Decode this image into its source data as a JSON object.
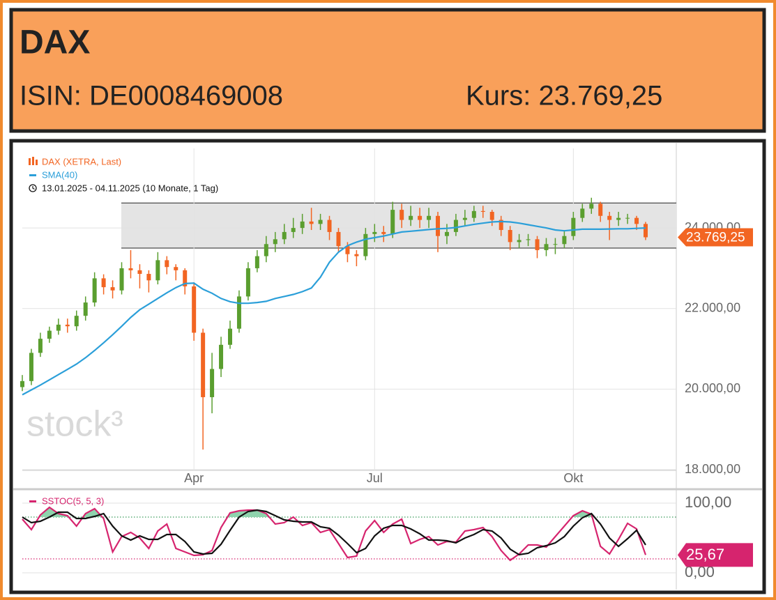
{
  "header": {
    "title": "DAX",
    "isin": "ISIN: DE0008469008",
    "price": "Kurs: 23.769,25"
  },
  "chart_data": [
    {
      "type": "candlestick",
      "period": "13.01.2025 - 04.11.2025  (10 Monate, 1 Tag)",
      "watermark": "stock³",
      "categories": [
        null,
        null,
        null,
        null,
        null,
        null,
        null,
        null,
        null,
        null,
        null,
        null,
        null,
        null,
        null,
        null,
        null,
        null,
        null,
        "Apr",
        null,
        null,
        null,
        null,
        null,
        null,
        null,
        null,
        null,
        null,
        null,
        null,
        null,
        null,
        null,
        null,
        null,
        null,
        null,
        "Jul",
        null,
        null,
        null,
        null,
        null,
        null,
        null,
        null,
        null,
        null,
        null,
        null,
        null,
        null,
        null,
        null,
        null,
        null,
        null,
        null,
        null,
        "Okt",
        null,
        null,
        null,
        null,
        null,
        null,
        null,
        null
      ],
      "series": [
        {
          "name": "DAX (XETRA, Last)",
          "color": "#f26522",
          "up_color": "#5a9e2f",
          "open": [
            20050,
            20200,
            20900,
            21250,
            21450,
            21600,
            21560,
            21820,
            22150,
            22750,
            22530,
            22450,
            23000,
            22950,
            22860,
            22700,
            23200,
            23030,
            22950,
            22550,
            21400,
            19800,
            20500,
            21100,
            21500,
            22300,
            23000,
            23300,
            23600,
            23720,
            23900,
            24000,
            24160,
            24100,
            24200,
            23900,
            23550,
            23350,
            23300,
            23850,
            23900,
            23850,
            24450,
            24200,
            24300,
            24200,
            24300,
            23800,
            23900,
            24200,
            24250,
            24420,
            24400,
            24200,
            23950,
            23650,
            23700,
            23720,
            23450,
            23600,
            23600,
            23800,
            24250,
            24480,
            24600,
            24300,
            24200,
            24250,
            24250,
            24100
          ],
          "high": [
            20350,
            21000,
            21400,
            21550,
            21750,
            21750,
            21950,
            22300,
            22900,
            22850,
            22700,
            23150,
            23450,
            23100,
            22950,
            23400,
            23300,
            23100,
            23000,
            22650,
            21500,
            20900,
            21300,
            21700,
            22450,
            23150,
            23450,
            23800,
            23900,
            24100,
            24250,
            24350,
            24500,
            24350,
            24300,
            24000,
            23650,
            23450,
            24000,
            24100,
            24050,
            24650,
            24600,
            24550,
            24500,
            24500,
            24400,
            24100,
            24350,
            24450,
            24550,
            24550,
            24450,
            24300,
            24050,
            23850,
            23850,
            23800,
            23750,
            23750,
            23950,
            24400,
            24600,
            24750,
            24650,
            24400,
            24400,
            24350,
            24300,
            24150
          ],
          "low": [
            19950,
            20100,
            20800,
            21150,
            21350,
            21400,
            21450,
            21700,
            22050,
            22350,
            22250,
            22350,
            22750,
            22500,
            22400,
            22600,
            22850,
            22700,
            22350,
            21200,
            18500,
            19400,
            20300,
            21000,
            21400,
            22200,
            22900,
            23150,
            23400,
            23600,
            23750,
            23850,
            23950,
            23950,
            23700,
            23400,
            23150,
            23050,
            23200,
            23650,
            23650,
            23750,
            24000,
            24050,
            24000,
            24000,
            23400,
            23600,
            23800,
            24050,
            24150,
            24250,
            24050,
            23800,
            23450,
            23500,
            23550,
            23250,
            23300,
            23350,
            23500,
            23700,
            24150,
            24350,
            24150,
            23700,
            24050,
            24100,
            23950,
            23700
          ],
          "close": [
            20200,
            20900,
            21250,
            21450,
            21600,
            21560,
            21820,
            22150,
            22750,
            22530,
            22450,
            23000,
            22950,
            22860,
            22700,
            23200,
            23030,
            22950,
            22550,
            21400,
            19800,
            20500,
            21100,
            21500,
            22300,
            23000,
            23300,
            23600,
            23720,
            23900,
            24000,
            24160,
            24100,
            24200,
            23900,
            23550,
            23350,
            23300,
            23850,
            23900,
            23850,
            24450,
            24200,
            24300,
            24200,
            24300,
            23800,
            23900,
            24200,
            24250,
            24420,
            24400,
            24200,
            23950,
            23650,
            23700,
            23720,
            23450,
            23600,
            23600,
            23800,
            24250,
            24480,
            24600,
            24300,
            24200,
            24250,
            24250,
            24100,
            23769.25
          ]
        },
        {
          "name": "SMA(40)",
          "color": "#2b9fd9",
          "values": [
            19860,
            19980,
            20100,
            20230,
            20360,
            20490,
            20620,
            20780,
            20960,
            21150,
            21350,
            21560,
            21780,
            21970,
            22110,
            22250,
            22390,
            22520,
            22620,
            22630,
            22480,
            22380,
            22250,
            22170,
            22130,
            22130,
            22150,
            22180,
            22250,
            22300,
            22350,
            22420,
            22510,
            22780,
            23150,
            23400,
            23560,
            23650,
            23720,
            23760,
            23800,
            23850,
            23900,
            23920,
            23940,
            23960,
            23980,
            23990,
            24010,
            24050,
            24090,
            24120,
            24150,
            24160,
            24150,
            24120,
            24080,
            24040,
            24000,
            23950,
            23930,
            23950,
            23970,
            23970,
            23970,
            23975,
            23980,
            23980,
            23990,
            24000
          ]
        }
      ],
      "band": [
        23500,
        24620
      ],
      "last": {
        "value": 23769.25,
        "label": "23.769,25"
      },
      "ylim": [
        17983,
        25974
      ],
      "yticks": [
        {
          "value": 18000,
          "label": "18.000,00"
        },
        {
          "value": 20000,
          "label": "20.000,00"
        },
        {
          "value": 22000,
          "label": "22.000,00"
        },
        {
          "value": 24000,
          "label": "24.000,00"
        }
      ],
      "grid": true
    },
    {
      "type": "line",
      "legend": "SSTOC(5, 5, 3)",
      "legend_color": "#d6246e",
      "series": [
        {
          "color": "#d6246e",
          "values": [
            77,
            62,
            83,
            94,
            85,
            82,
            67,
            85,
            92,
            78,
            30,
            52,
            58,
            50,
            35,
            60,
            70,
            35,
            30,
            25,
            26,
            32,
            65,
            86,
            89,
            90,
            90,
            85,
            70,
            72,
            80,
            68,
            72,
            58,
            62,
            42,
            22,
            24,
            60,
            75,
            58,
            70,
            77,
            42,
            48,
            52,
            40,
            45,
            44,
            60,
            62,
            65,
            52,
            32,
            18,
            27,
            40,
            40,
            37,
            52,
            67,
            82,
            89,
            84,
            38,
            27,
            48,
            71,
            63,
            25.67
          ]
        },
        {
          "color": "#111111",
          "values": [
            80,
            72,
            74,
            80,
            87,
            87,
            78,
            78,
            81,
            85,
            67,
            53,
            47,
            53,
            48,
            48,
            55,
            55,
            45,
            30,
            27,
            28,
            41,
            61,
            80,
            88,
            90,
            88,
            82,
            76,
            74,
            73,
            73,
            66,
            64,
            54,
            42,
            29,
            35,
            53,
            64,
            68,
            68,
            63,
            56,
            47,
            47,
            46,
            43,
            50,
            55,
            62,
            60,
            50,
            34,
            26,
            28,
            36,
            39,
            43,
            52,
            67,
            79,
            85,
            70,
            50,
            38,
            49,
            61,
            40
          ]
        }
      ],
      "levels": [
        {
          "value": 80,
          "color": "#3a9a5b"
        },
        {
          "value": 20,
          "color": "#d6246e"
        }
      ],
      "fill_color": "#8fd3ad",
      "last": {
        "value": 25.67,
        "label": "25,67"
      },
      "ylim": [
        -5,
        115
      ],
      "yticks": [
        {
          "value": 100,
          "label": "100,00"
        },
        {
          "value": 0,
          "label": "0,00"
        }
      ],
      "grid": true
    }
  ]
}
